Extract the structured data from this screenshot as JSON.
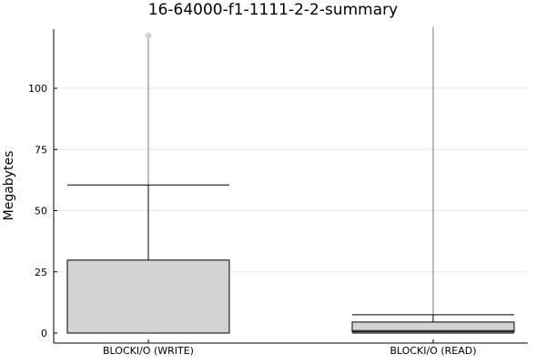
{
  "chart_data": {
    "type": "box",
    "title": "16-64000-f1-1111-2-2-summary",
    "xlabel": "",
    "ylabel": "Megabytes",
    "ylim": [
      -2,
      125
    ],
    "yticks": [
      0,
      25,
      50,
      75,
      100
    ],
    "grid": true,
    "categories": [
      "BLOCKI/O (WRITE)",
      "BLOCKI/O (READ)"
    ],
    "boxes": [
      {
        "category": "BLOCKI/O (WRITE)",
        "whisker_low": 0,
        "q1": 0,
        "median": 0,
        "q3": 29.8,
        "whisker_high": 60.5,
        "line_top": 121.5,
        "outliers": [
          121.5
        ]
      },
      {
        "category": "BLOCKI/O (READ)",
        "whisker_low": 0,
        "q1": 0.5,
        "median": 1.0,
        "q3": 4.5,
        "whisker_high": 7.5,
        "line_top": 125,
        "outliers": []
      }
    ],
    "colors": {
      "box_fill": "#d3d3d3",
      "grid": "#e6e6e6",
      "outlier": "#d3d3d3",
      "line": "#000000"
    }
  }
}
